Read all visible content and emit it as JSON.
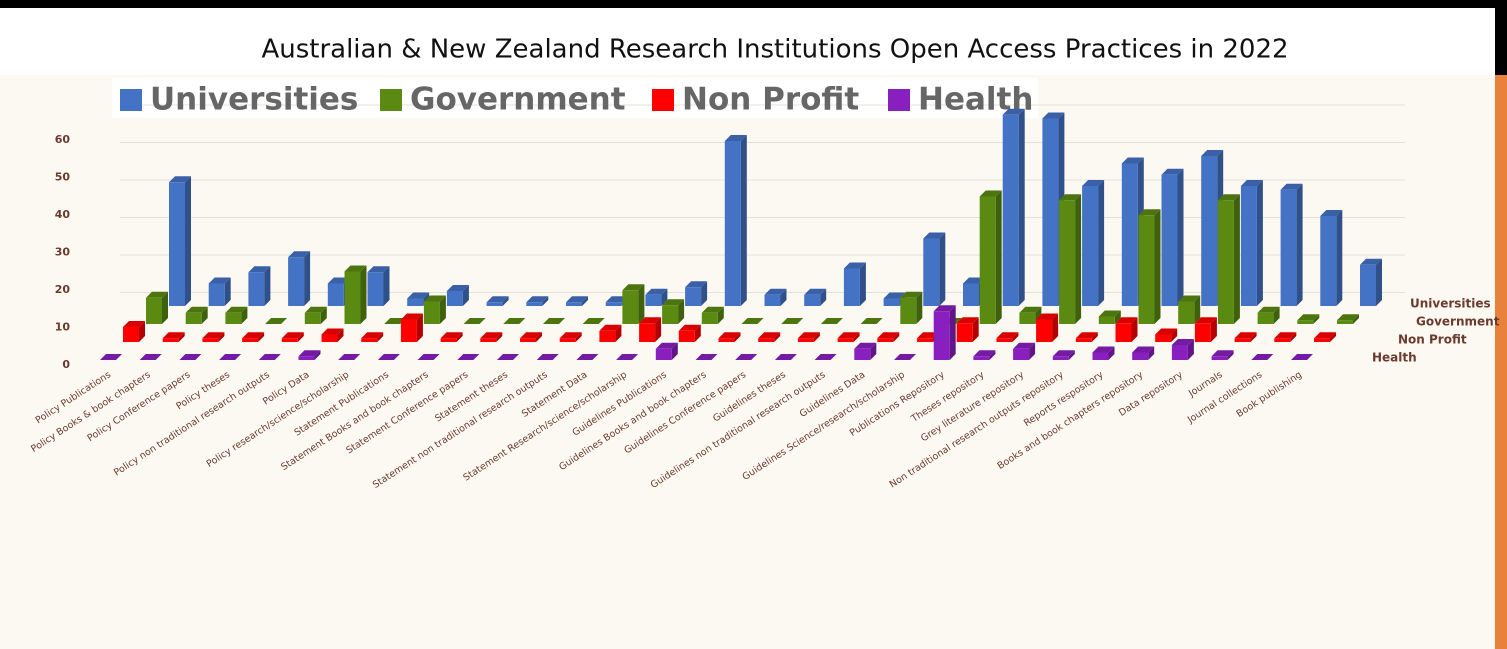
{
  "chart_data": {
    "type": "bar3d",
    "title": "Australian & New Zealand Research Institutions Open Access Practices in 2022",
    "categories": [
      "Policy Publications",
      "Policy Books & book chapters",
      "Policy Conference papers",
      "Policy theses",
      "Policy non traditional research outputs",
      "Policy Data",
      "Policy research/science/scholarship",
      "Statement Publications",
      "Statement Books and book chapters",
      "Statement Conference papers",
      "Statement theses",
      "Statement non traditional research outputs",
      "Statement Data",
      "Statement Research/science/scholarship",
      "Guidelines Publications",
      "Guidelines Books and book chapters",
      "Guidelines Conference papers",
      "Guidelines theses",
      "Guidelines non traditional research outputs",
      "Guidelines Data",
      "Guidelines Science/research/scholarship",
      "Publications Repository",
      "Theses repository",
      "Grey literature repository",
      "Non traditional research outputs repository",
      "Reports respository",
      "Books and book chapters repository",
      "Data repository",
      "Journals",
      "Journal collections",
      "Book publishing"
    ],
    "series": [
      {
        "name": "Universities",
        "color": "#4472c4",
        "values": [
          33,
          6,
          9,
          13,
          6,
          9,
          2,
          4,
          1,
          1,
          1,
          1,
          3,
          5,
          44,
          3,
          3,
          10,
          2,
          18,
          6,
          51,
          50,
          32,
          38,
          35,
          40,
          32,
          31,
          24,
          11
        ]
      },
      {
        "name": "Government",
        "color": "#5a8a12",
        "values": [
          7,
          3,
          3,
          0,
          3,
          14,
          0,
          6,
          0,
          0,
          0,
          0,
          9,
          5,
          3,
          0,
          0,
          0,
          0,
          7,
          0,
          34,
          3,
          33,
          2,
          29,
          6,
          33,
          3,
          1,
          1
        ]
      },
      {
        "name": "Non Profit",
        "color": "#ff0000",
        "values": [
          4,
          1,
          1,
          1,
          1,
          2,
          1,
          6,
          1,
          1,
          1,
          1,
          3,
          5,
          3,
          1,
          1,
          1,
          1,
          1,
          1,
          5,
          1,
          6,
          1,
          5,
          2,
          5,
          1,
          1,
          1
        ]
      },
      {
        "name": "Health",
        "color": "#8a1fc0",
        "values": [
          0,
          0,
          0,
          0,
          0,
          1,
          0,
          0,
          0,
          0,
          0,
          0,
          0,
          0,
          3,
          0,
          0,
          0,
          0,
          3,
          0,
          13,
          1,
          3,
          1,
          2,
          2,
          4,
          1,
          0,
          0
        ]
      }
    ],
    "ylim": [
      0,
      60
    ],
    "yticks": [
      0,
      10,
      20,
      30,
      40,
      50,
      60
    ],
    "grid": true,
    "legend": "top"
  }
}
